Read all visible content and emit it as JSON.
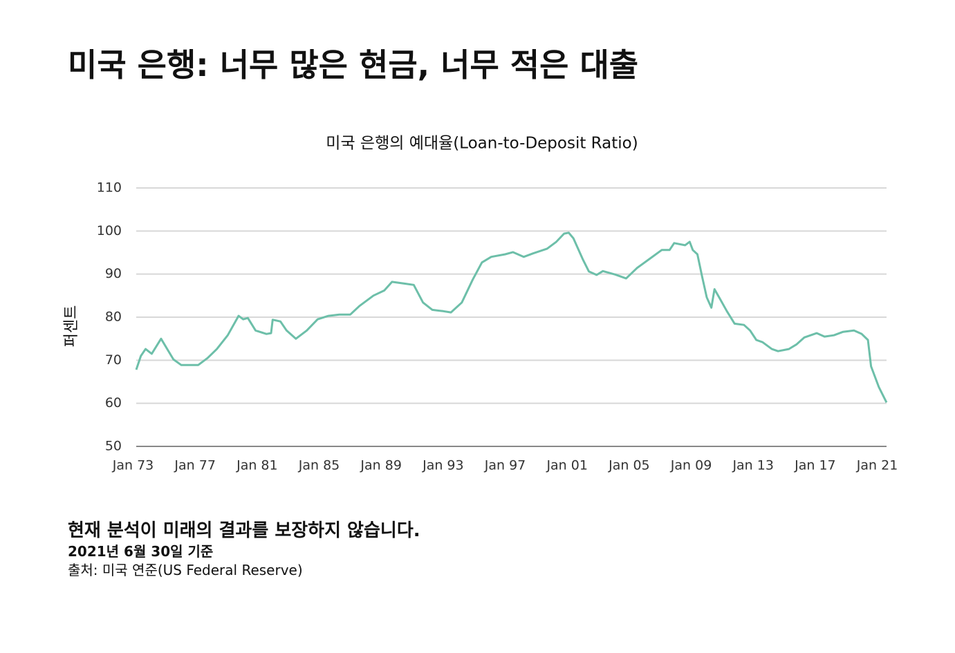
{
  "chart_data": {
    "type": "line",
    "heading": "미국 은행: 너무 많은 현금, 너무 적은 대출",
    "title": "미국 은행의 예대율(Loan-to-Deposit Ratio)",
    "ylabel": "퍼센트",
    "notes": [
      "현재 분석이 미래의 결과를 보장하지 않습니다.",
      "2021년 6월 30일 기준",
      "출처: 미국 연준(US Federal Reserve)"
    ],
    "xlim": [
      1973.2,
      2021.6
    ],
    "xticks": [
      {
        "value": 1973,
        "label": "Jan 73"
      },
      {
        "value": 1977,
        "label": "Jan 77"
      },
      {
        "value": 1981,
        "label": "Jan 81"
      },
      {
        "value": 1985,
        "label": "Jan 85"
      },
      {
        "value": 1989,
        "label": "Jan 89"
      },
      {
        "value": 1993,
        "label": "Jan 93"
      },
      {
        "value": 1997,
        "label": "Jan 97"
      },
      {
        "value": 2001,
        "label": "Jan 01"
      },
      {
        "value": 2005,
        "label": "Jan 05"
      },
      {
        "value": 2009,
        "label": "Jan 09"
      },
      {
        "value": 2013,
        "label": "Jan 13"
      },
      {
        "value": 2017,
        "label": "Jan 17"
      },
      {
        "value": 2021,
        "label": "Jan 21"
      }
    ],
    "ylim": [
      50,
      110
    ],
    "yticks": [
      50,
      60,
      70,
      80,
      90,
      100,
      110
    ],
    "grid": true,
    "series": [
      {
        "name": "Loan-to-Deposit Ratio",
        "color": "#6dbfa9",
        "x": [
          1973.2,
          1973.5,
          1973.8,
          1974.2,
          1974.8,
          1975.2,
          1975.6,
          1976.1,
          1976.7,
          1977.2,
          1977.8,
          1978.4,
          1979.1,
          1979.8,
          1980.1,
          1980.4,
          1980.9,
          1981.6,
          1981.9,
          1982.0,
          1982.5,
          1982.9,
          1983.5,
          1984.2,
          1984.9,
          1985.6,
          1986.3,
          1987.0,
          1987.6,
          1988.5,
          1989.2,
          1989.7,
          1990.5,
          1991.1,
          1991.7,
          1992.3,
          1993.0,
          1993.5,
          1994.2,
          1994.9,
          1995.5,
          1996.1,
          1997.0,
          1997.5,
          1998.2,
          1998.8,
          1999.7,
          2000.3,
          2000.8,
          2001.1,
          2001.4,
          2002.0,
          2002.4,
          2002.9,
          2003.3,
          2004.1,
          2004.8,
          2005.5,
          2006.3,
          2007.1,
          2007.6,
          2007.9,
          2008.6,
          2008.9,
          2009.1,
          2009.4,
          2009.7,
          2010.0,
          2010.3,
          2010.5,
          2010.8,
          2011.3,
          2011.8,
          2012.4,
          2012.8,
          2013.2,
          2013.6,
          2014.2,
          2014.6,
          2015.3,
          2015.8,
          2016.3,
          2017.1,
          2017.6,
          2018.2,
          2018.8,
          2019.5,
          2020.0,
          2020.4,
          2020.6,
          2021.1,
          2021.6
        ],
        "values": [
          67.8,
          71,
          72.6,
          71.5,
          75,
          72.6,
          70.2,
          68.9,
          68.9,
          68.9,
          70.5,
          72.6,
          75.8,
          80.3,
          79.5,
          79.8,
          76.9,
          76.1,
          76.3,
          79.4,
          79.0,
          76.9,
          75.0,
          76.9,
          79.5,
          80.3,
          80.6,
          80.6,
          82.6,
          85.0,
          86.2,
          88.2,
          87.8,
          87.5,
          83.4,
          81.7,
          81.4,
          81.1,
          83.4,
          88.7,
          92.7,
          94.0,
          94.6,
          95.1,
          94.0,
          94.8,
          95.9,
          97.5,
          99.4,
          99.6,
          98.3,
          93.5,
          90.6,
          89.8,
          90.7,
          89.9,
          89.0,
          91.4,
          93.5,
          95.6,
          95.6,
          97.2,
          96.7,
          97.5,
          95.6,
          94.6,
          89.5,
          84.6,
          82.2,
          86.5,
          84.6,
          81.4,
          78.5,
          78.2,
          76.9,
          74.7,
          74.2,
          72.6,
          72.1,
          72.6,
          73.7,
          75.3,
          76.3,
          75.5,
          75.8,
          76.6,
          76.9,
          76.1,
          74.7,
          68.6,
          63.8,
          60.2
        ]
      }
    ]
  }
}
